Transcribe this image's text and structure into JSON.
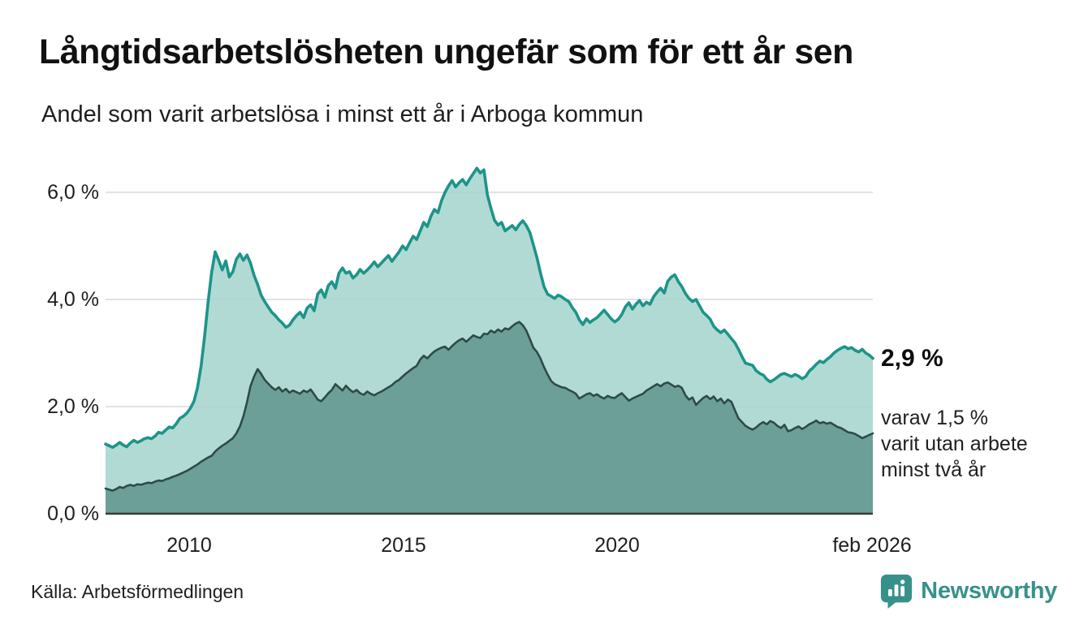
{
  "header": {
    "title": "Långtidsarbetslösheten ungefär som för ett år sen",
    "subtitle": "Andel som varit arbetslösa i minst ett år i Arboga kommun"
  },
  "axes": {
    "y_ticks": [
      "6,0 %",
      "4,0 %",
      "2,0 %",
      "0,0 %"
    ],
    "x_ticks": [
      "2010",
      "2015",
      "2020",
      "feb 2026"
    ]
  },
  "annotations": {
    "latest_value": "2,9 %",
    "note_line1": "varav 1,5 %",
    "note_line2": "varit utan arbete",
    "note_line3": "minst två år"
  },
  "footer": {
    "source": "Källa: Arbetsförmedlingen",
    "brand": "Newsworthy"
  },
  "colors": {
    "accent_teal": "#1d9489",
    "light_fill": "#a5d4cd",
    "dark_line": "#2e4b47",
    "dark_fill": "#6d9f99",
    "grid": "#e2e2e2",
    "axis": "#3a3a3a",
    "brand_teal": "#37918a"
  },
  "chart_data": {
    "type": "area",
    "title": "Andel som varit arbetslösa i minst ett år i Arboga kommun",
    "unit": "%",
    "x_start": "2008-01",
    "x_end": "2026-02",
    "step_months": 1,
    "ylim": [
      0,
      6.6
    ],
    "yticks": [
      0,
      2,
      4,
      6
    ],
    "xticks": [
      {
        "label": "2010",
        "year": 2010
      },
      {
        "label": "2015",
        "year": 2015
      },
      {
        "label": "2020",
        "year": 2020
      },
      {
        "label": "feb 2026",
        "year": 2026.083
      }
    ],
    "grid": true,
    "legend_position": "right-annotations",
    "series": [
      {
        "name": "Andel arbetslösa minst ett år",
        "end_label": "2,9 %",
        "line_color": "#1d9489",
        "fill_color": "#a5d4cd",
        "values": [
          1.3,
          1.27,
          1.24,
          1.28,
          1.33,
          1.28,
          1.25,
          1.32,
          1.37,
          1.33,
          1.36,
          1.4,
          1.42,
          1.4,
          1.45,
          1.52,
          1.5,
          1.56,
          1.62,
          1.6,
          1.68,
          1.78,
          1.82,
          1.88,
          1.97,
          2.1,
          2.35,
          2.75,
          3.3,
          3.95,
          4.5,
          4.89,
          4.73,
          4.55,
          4.72,
          4.42,
          4.52,
          4.75,
          4.85,
          4.73,
          4.83,
          4.68,
          4.45,
          4.28,
          4.08,
          3.96,
          3.86,
          3.76,
          3.7,
          3.62,
          3.56,
          3.48,
          3.52,
          3.62,
          3.7,
          3.76,
          3.66,
          3.84,
          3.9,
          3.79,
          4.1,
          4.18,
          4.04,
          4.26,
          4.33,
          4.21,
          4.49,
          4.59,
          4.49,
          4.52,
          4.4,
          4.46,
          4.56,
          4.49,
          4.55,
          4.62,
          4.7,
          4.61,
          4.68,
          4.75,
          4.82,
          4.71,
          4.8,
          4.89,
          5.0,
          4.93,
          5.06,
          5.18,
          5.12,
          5.28,
          5.44,
          5.36,
          5.55,
          5.68,
          5.62,
          5.84,
          6.0,
          6.12,
          6.22,
          6.1,
          6.18,
          6.24,
          6.14,
          6.25,
          6.35,
          6.45,
          6.36,
          6.42,
          5.95,
          5.7,
          5.48,
          5.39,
          5.44,
          5.28,
          5.33,
          5.38,
          5.3,
          5.4,
          5.47,
          5.38,
          5.25,
          5.02,
          4.78,
          4.5,
          4.24,
          4.1,
          4.06,
          4.02,
          4.08,
          4.05,
          4.0,
          3.96,
          3.85,
          3.76,
          3.62,
          3.53,
          3.64,
          3.57,
          3.62,
          3.66,
          3.73,
          3.8,
          3.72,
          3.64,
          3.58,
          3.63,
          3.72,
          3.86,
          3.94,
          3.82,
          3.91,
          3.98,
          3.88,
          3.95,
          3.91,
          4.05,
          4.14,
          4.21,
          4.12,
          4.34,
          4.42,
          4.46,
          4.33,
          4.24,
          4.11,
          4.02,
          3.96,
          4.0,
          3.88,
          3.76,
          3.7,
          3.63,
          3.5,
          3.43,
          3.38,
          3.43,
          3.35,
          3.27,
          3.19,
          3.07,
          2.93,
          2.81,
          2.79,
          2.77,
          2.67,
          2.62,
          2.59,
          2.51,
          2.46,
          2.5,
          2.55,
          2.6,
          2.62,
          2.59,
          2.56,
          2.6,
          2.57,
          2.52,
          2.56,
          2.66,
          2.72,
          2.79,
          2.85,
          2.82,
          2.88,
          2.93,
          3.0,
          3.05,
          3.09,
          3.12,
          3.08,
          3.1,
          3.05,
          3.02,
          3.07,
          3.0,
          2.96,
          2.9
        ]
      },
      {
        "name": "Andel arbetslösa minst två år",
        "end_label": "1,5 %",
        "line_color": "#2e4b47",
        "fill_color": "#6d9f99",
        "values": [
          0.47,
          0.45,
          0.43,
          0.46,
          0.5,
          0.48,
          0.52,
          0.54,
          0.52,
          0.55,
          0.54,
          0.56,
          0.58,
          0.57,
          0.6,
          0.62,
          0.61,
          0.64,
          0.66,
          0.69,
          0.71,
          0.74,
          0.77,
          0.8,
          0.84,
          0.88,
          0.92,
          0.97,
          1.01,
          1.05,
          1.08,
          1.16,
          1.22,
          1.27,
          1.31,
          1.36,
          1.41,
          1.5,
          1.63,
          1.82,
          2.08,
          2.38,
          2.56,
          2.7,
          2.61,
          2.5,
          2.43,
          2.36,
          2.31,
          2.36,
          2.28,
          2.33,
          2.26,
          2.3,
          2.27,
          2.24,
          2.3,
          2.27,
          2.32,
          2.23,
          2.13,
          2.1,
          2.17,
          2.25,
          2.31,
          2.42,
          2.36,
          2.3,
          2.39,
          2.32,
          2.27,
          2.31,
          2.25,
          2.22,
          2.28,
          2.24,
          2.21,
          2.25,
          2.28,
          2.32,
          2.36,
          2.4,
          2.46,
          2.5,
          2.56,
          2.62,
          2.67,
          2.72,
          2.76,
          2.88,
          2.95,
          2.9,
          2.97,
          3.03,
          3.07,
          3.1,
          3.12,
          3.06,
          3.13,
          3.19,
          3.24,
          3.27,
          3.21,
          3.27,
          3.33,
          3.3,
          3.28,
          3.36,
          3.35,
          3.42,
          3.38,
          3.44,
          3.4,
          3.46,
          3.44,
          3.5,
          3.55,
          3.58,
          3.52,
          3.42,
          3.26,
          3.1,
          3.02,
          2.9,
          2.74,
          2.6,
          2.48,
          2.42,
          2.39,
          2.36,
          2.35,
          2.31,
          2.28,
          2.24,
          2.15,
          2.19,
          2.23,
          2.25,
          2.2,
          2.23,
          2.18,
          2.15,
          2.2,
          2.17,
          2.16,
          2.21,
          2.25,
          2.18,
          2.11,
          2.15,
          2.18,
          2.21,
          2.24,
          2.3,
          2.34,
          2.38,
          2.42,
          2.38,
          2.43,
          2.45,
          2.41,
          2.37,
          2.39,
          2.35,
          2.21,
          2.13,
          2.17,
          2.03,
          2.1,
          2.16,
          2.2,
          2.14,
          2.19,
          2.1,
          2.15,
          2.06,
          2.13,
          2.09,
          1.93,
          1.78,
          1.71,
          1.64,
          1.6,
          1.57,
          1.61,
          1.67,
          1.71,
          1.67,
          1.73,
          1.7,
          1.64,
          1.6,
          1.66,
          1.54,
          1.56,
          1.6,
          1.63,
          1.58,
          1.62,
          1.67,
          1.7,
          1.74,
          1.69,
          1.71,
          1.68,
          1.7,
          1.66,
          1.62,
          1.6,
          1.56,
          1.52,
          1.51,
          1.49,
          1.45,
          1.41,
          1.44,
          1.47,
          1.5
        ]
      }
    ]
  }
}
